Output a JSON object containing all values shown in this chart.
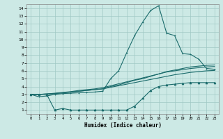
{
  "xlabel": "Humidex (Indice chaleur)",
  "xlim": [
    -0.5,
    23.5
  ],
  "ylim": [
    0.5,
    14.5
  ],
  "xticks": [
    0,
    1,
    2,
    3,
    4,
    5,
    6,
    7,
    8,
    9,
    10,
    11,
    12,
    13,
    14,
    15,
    16,
    17,
    18,
    19,
    20,
    21,
    22,
    23
  ],
  "yticks": [
    1,
    2,
    3,
    4,
    5,
    6,
    7,
    8,
    9,
    10,
    11,
    12,
    13,
    14
  ],
  "bg_color": "#cce9e5",
  "grid_color": "#a0c8c4",
  "line_color": "#1a6b6b",
  "line1_x": [
    0,
    1,
    2,
    3,
    4,
    5,
    6,
    7,
    8,
    9,
    10,
    11,
    12,
    13,
    14,
    15,
    16,
    17,
    18,
    19,
    20,
    21,
    22,
    23
  ],
  "line1_y": [
    3.0,
    2.7,
    2.8,
    3.0,
    3.1,
    3.15,
    3.2,
    3.25,
    3.3,
    3.4,
    5.0,
    6.0,
    8.3,
    10.5,
    12.2,
    13.7,
    14.3,
    10.8,
    10.5,
    8.2,
    8.1,
    7.5,
    6.3,
    6.2
  ],
  "line2_x": [
    0,
    1,
    2,
    3,
    4,
    5,
    6,
    7,
    8,
    9,
    10,
    11,
    12,
    13,
    14,
    15,
    16,
    17,
    18,
    19,
    20,
    21,
    22,
    23
  ],
  "line2_y": [
    3.0,
    3.0,
    3.05,
    3.1,
    3.2,
    3.3,
    3.4,
    3.5,
    3.6,
    3.7,
    4.0,
    4.2,
    4.5,
    4.8,
    5.0,
    5.3,
    5.6,
    5.9,
    6.1,
    6.3,
    6.5,
    6.6,
    6.7,
    6.75
  ],
  "line3_x": [
    0,
    1,
    2,
    3,
    4,
    5,
    6,
    7,
    8,
    9,
    10,
    11,
    12,
    13,
    14,
    15,
    16,
    17,
    18,
    19,
    20,
    21,
    22,
    23
  ],
  "line3_y": [
    3.0,
    3.0,
    3.05,
    3.15,
    3.25,
    3.35,
    3.5,
    3.6,
    3.7,
    3.85,
    4.1,
    4.35,
    4.6,
    4.85,
    5.1,
    5.35,
    5.6,
    5.85,
    6.0,
    6.15,
    6.3,
    6.4,
    6.5,
    6.55
  ],
  "line4_x": [
    0,
    1,
    2,
    3,
    4,
    5,
    6,
    7,
    8,
    9,
    10,
    11,
    12,
    13,
    14,
    15,
    16,
    17,
    18,
    19,
    20,
    21,
    22,
    23
  ],
  "line4_y": [
    3.0,
    3.0,
    3.05,
    3.1,
    3.2,
    3.3,
    3.4,
    3.5,
    3.6,
    3.7,
    3.9,
    4.1,
    4.3,
    4.5,
    4.7,
    4.9,
    5.1,
    5.3,
    5.5,
    5.65,
    5.8,
    5.9,
    6.0,
    6.05
  ],
  "line5_x": [
    0,
    1,
    2,
    3,
    4,
    5,
    6,
    7,
    8,
    9,
    10,
    11,
    12,
    13,
    14,
    15,
    16,
    17,
    18,
    19,
    20,
    21,
    22,
    23
  ],
  "line5_y": [
    3.0,
    3.0,
    3.0,
    1.0,
    1.2,
    1.0,
    1.0,
    1.0,
    1.0,
    1.0,
    1.0,
    1.0,
    1.0,
    1.5,
    2.5,
    3.5,
    4.0,
    4.2,
    4.3,
    4.4,
    4.5,
    4.5,
    4.5,
    4.5
  ]
}
